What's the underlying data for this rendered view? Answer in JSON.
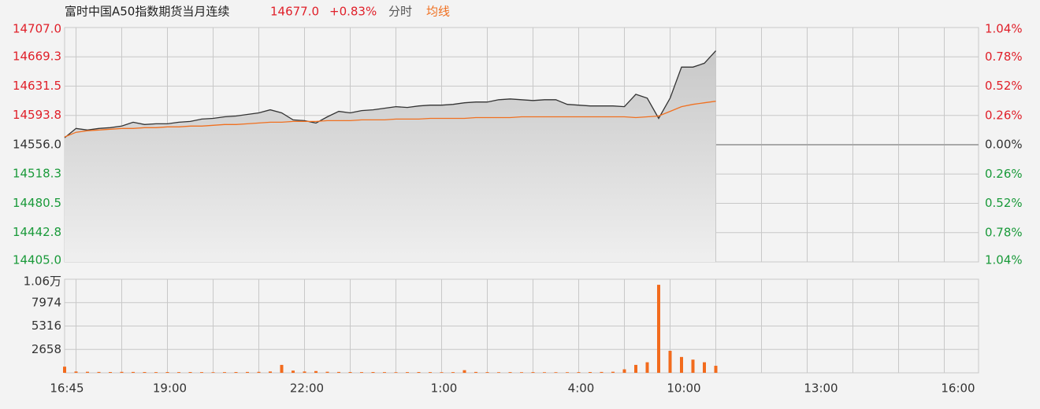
{
  "header": {
    "name": "富时中国A50指数期货当月连续",
    "price": "14677.0",
    "change": "+0.83%"
  },
  "chart_data": {
    "type": "line",
    "categories": [
      "16:45",
      null,
      null,
      null,
      null,
      null,
      null,
      null,
      null,
      "19:00",
      null,
      null,
      null,
      null,
      null,
      null,
      null,
      null,
      null,
      null,
      null,
      "22:00",
      null,
      null,
      null,
      null,
      null,
      null,
      null,
      null,
      null,
      null,
      null,
      "1:00",
      null,
      null,
      null,
      null,
      null,
      null,
      null,
      null,
      null,
      null,
      null,
      "4:00",
      null,
      null,
      null,
      null,
      null,
      null,
      null,
      null,
      "10:00",
      null,
      null,
      null,
      null,
      null,
      null,
      null,
      null,
      null,
      null,
      null,
      "13:00",
      null,
      null,
      null,
      null,
      null,
      null,
      null,
      null,
      null,
      null,
      null,
      "16:00",
      null
    ],
    "series": [
      {
        "name": "分时",
        "color": "#333333",
        "values": [
          14565,
          14577,
          14575,
          14577,
          14578,
          14580,
          14585,
          14582,
          14583,
          14583,
          14585,
          14586,
          14589,
          14590,
          14592,
          14593,
          14595,
          14597,
          14601,
          14597,
          14588,
          14587,
          14584,
          14592,
          14599,
          14597,
          14600,
          14601,
          14603,
          14605,
          14604,
          14606,
          14607,
          14607,
          14608,
          14610,
          14611,
          14611,
          14614,
          14615,
          14614,
          14613,
          14614,
          14614,
          14608,
          14607,
          14606,
          14606,
          14606,
          14605,
          14621,
          14616,
          14590,
          14616,
          14656,
          14656,
          14661,
          14677,
          null,
          null,
          null,
          null,
          null,
          null,
          null,
          null,
          null,
          null,
          null,
          null,
          null,
          null,
          null,
          null,
          null,
          null,
          null,
          null,
          null,
          null
        ]
      },
      {
        "name": "均线",
        "color": "#f07020",
        "values": [
          14566,
          14572,
          14574,
          14575,
          14576,
          14577,
          14577,
          14578,
          14578,
          14579,
          14579,
          14580,
          14580,
          14581,
          14582,
          14582,
          14583,
          14584,
          14585,
          14585,
          14586,
          14586,
          14586,
          14587,
          14587,
          14587,
          14588,
          14588,
          14588,
          14589,
          14589,
          14589,
          14590,
          14590,
          14590,
          14590,
          14591,
          14591,
          14591,
          14591,
          14592,
          14592,
          14592,
          14592,
          14592,
          14592,
          14592,
          14592,
          14592,
          14592,
          14591,
          14592,
          14593,
          14599,
          14605,
          14608,
          14610,
          14612,
          null,
          null,
          null,
          null,
          null,
          null,
          null,
          null,
          null,
          null,
          null,
          null,
          null,
          null,
          null,
          null,
          null,
          null,
          null,
          null,
          null,
          null
        ]
      }
    ],
    "ylim": [
      14405,
      14707
    ],
    "yticks": [
      {
        "value": 14707,
        "label": "14707.0"
      },
      14669.3,
      14631.5,
      14593.8,
      {
        "value": 14556,
        "label": "14556.0"
      },
      14518.3,
      14480.5,
      14442.8,
      {
        "value": 14405,
        "label": "14405.0"
      }
    ],
    "y2lim": [
      -1.04,
      1.04
    ],
    "y2ticks": [
      {
        "value": 1.04,
        "label": "1.04%"
      },
      {
        "value": 0.78,
        "label": "0.78%"
      },
      {
        "value": 0.52,
        "label": "0.52%"
      },
      {
        "value": 0.26,
        "label": "0.26%"
      },
      {
        "value": 0,
        "label": "0.00%"
      },
      {
        "value": -0.26,
        "label": "0.26%"
      },
      {
        "value": -0.52,
        "label": "0.52%"
      },
      {
        "value": -0.78,
        "label": "0.78%"
      },
      {
        "value": -1.04,
        "label": "1.04%"
      }
    ],
    "up_color": "#e0202a",
    "down_color": "#1a9a3a",
    "grid": true,
    "volume": {
      "type": "bar",
      "color": "#f26b1d",
      "values": [
        700,
        150,
        120,
        100,
        90,
        110,
        100,
        90,
        80,
        90,
        80,
        90,
        80,
        70,
        80,
        90,
        100,
        110,
        150,
        900,
        250,
        150,
        200,
        120,
        100,
        90,
        80,
        90,
        80,
        70,
        80,
        90,
        80,
        70,
        80,
        300,
        100,
        80,
        70,
        80,
        70,
        80,
        70,
        70,
        70,
        80,
        90,
        100,
        120,
        400,
        900,
        1200,
        10000,
        2500,
        1800,
        1500,
        1200,
        800,
        null,
        null,
        null,
        null,
        null,
        null,
        null,
        null,
        null,
        null,
        null,
        null,
        null,
        null,
        null,
        null,
        null,
        null,
        null,
        null,
        null,
        null
      ],
      "ylim": [
        0,
        10632
      ],
      "yticks": [
        2658,
        5316,
        7974,
        {
          "value": 10632,
          "label": "1.06万"
        }
      ]
    }
  }
}
